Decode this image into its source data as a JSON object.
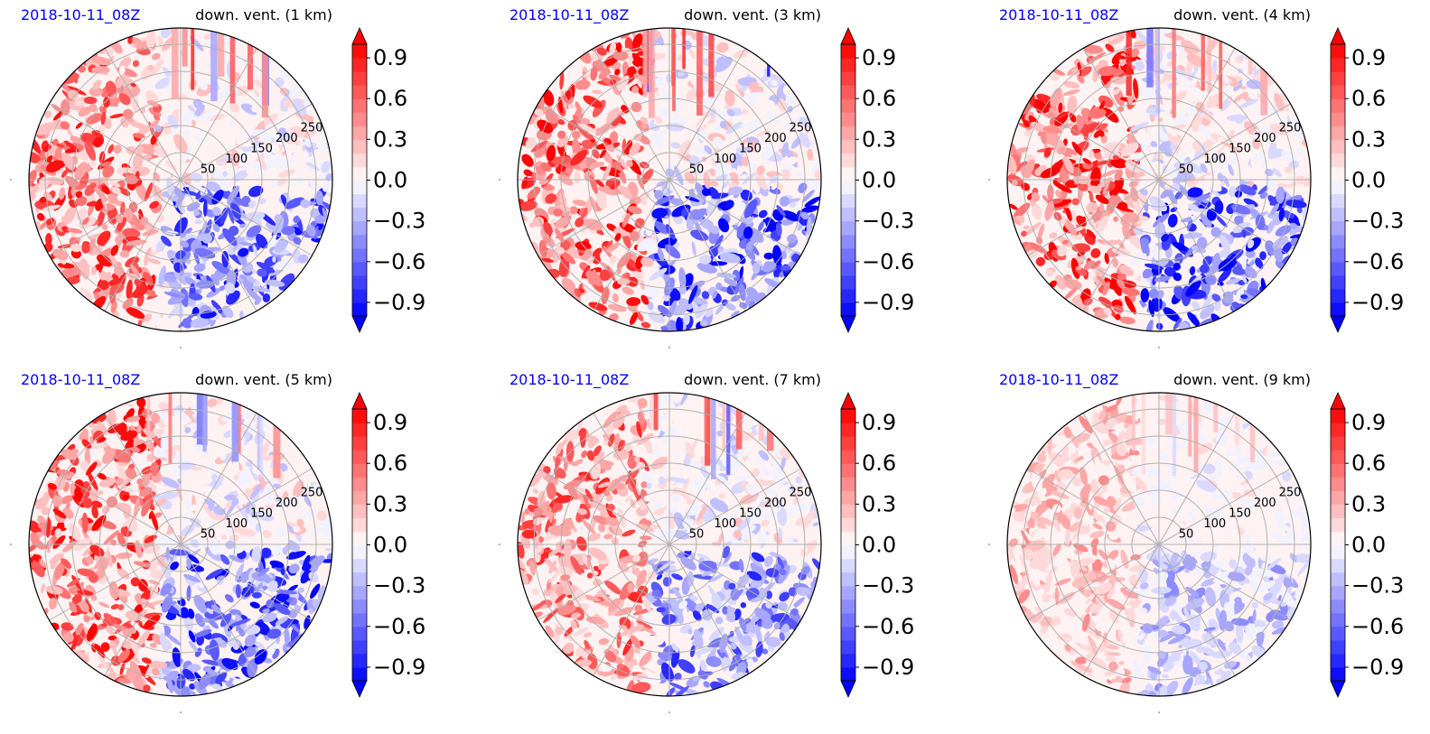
{
  "chart_data": [
    {
      "type": "heatmap",
      "date": "2018-10-11_08Z",
      "title": "down. vent. (1 km)",
      "radial_ticks": [
        "50",
        "100",
        "150",
        "200",
        "250"
      ],
      "colorbar": {
        "ticks": [
          "0.9",
          "0.6",
          "0.3",
          "0.0",
          "−0.3",
          "−0.6",
          "−0.9"
        ],
        "tick_values": [
          0.9,
          0.6,
          0.3,
          0.0,
          -0.3,
          -0.6,
          -0.9
        ],
        "range": [
          -1.0,
          1.0
        ],
        "step": 0.1,
        "extend": "both",
        "cmap": "bwr"
      }
    },
    {
      "type": "heatmap",
      "date": "2018-10-11_08Z",
      "title": "down. vent. (3 km)",
      "radial_ticks": [
        "50",
        "100",
        "150",
        "200",
        "250"
      ],
      "colorbar": {
        "ticks": [
          "0.9",
          "0.6",
          "0.3",
          "0.0",
          "−0.3",
          "−0.6",
          "−0.9"
        ],
        "tick_values": [
          0.9,
          0.6,
          0.3,
          0.0,
          -0.3,
          -0.6,
          -0.9
        ],
        "range": [
          -1.0,
          1.0
        ],
        "step": 0.1,
        "extend": "both",
        "cmap": "bwr"
      }
    },
    {
      "type": "heatmap",
      "date": "2018-10-11_08Z",
      "title": "down. vent. (4 km)",
      "radial_ticks": [
        "50",
        "100",
        "150",
        "200",
        "250"
      ],
      "colorbar": {
        "ticks": [
          "0.9",
          "0.6",
          "0.3",
          "0.0",
          "−0.3",
          "−0.6",
          "−0.9"
        ],
        "tick_values": [
          0.9,
          0.6,
          0.3,
          0.0,
          -0.3,
          -0.6,
          -0.9
        ],
        "range": [
          -1.0,
          1.0
        ],
        "step": 0.1,
        "extend": "both",
        "cmap": "bwr"
      }
    },
    {
      "type": "heatmap",
      "date": "2018-10-11_08Z",
      "title": "down. vent. (5 km)",
      "radial_ticks": [
        "50",
        "100",
        "150",
        "200",
        "250"
      ],
      "colorbar": {
        "ticks": [
          "0.9",
          "0.6",
          "0.3",
          "0.0",
          "−0.3",
          "−0.6",
          "−0.9"
        ],
        "tick_values": [
          0.9,
          0.6,
          0.3,
          0.0,
          -0.3,
          -0.6,
          -0.9
        ],
        "range": [
          -1.0,
          1.0
        ],
        "step": 0.1,
        "extend": "both",
        "cmap": "bwr"
      }
    },
    {
      "type": "heatmap",
      "date": "2018-10-11_08Z",
      "title": "down. vent. (7 km)",
      "radial_ticks": [
        "50",
        "100",
        "150",
        "200",
        "250"
      ],
      "colorbar": {
        "ticks": [
          "0.9",
          "0.6",
          "0.3",
          "0.0",
          "−0.3",
          "−0.6",
          "−0.9"
        ],
        "tick_values": [
          0.9,
          0.6,
          0.3,
          0.0,
          -0.3,
          -0.6,
          -0.9
        ],
        "range": [
          -1.0,
          1.0
        ],
        "step": 0.1,
        "extend": "both",
        "cmap": "bwr"
      }
    },
    {
      "type": "heatmap",
      "date": "2018-10-11_08Z",
      "title": "down. vent. (9 km)",
      "radial_ticks": [
        "50",
        "100",
        "150",
        "200",
        "250"
      ],
      "colorbar": {
        "ticks": [
          "0.9",
          "0.6",
          "0.3",
          "0.0",
          "−0.3",
          "−0.6",
          "−0.9"
        ],
        "tick_values": [
          0.9,
          0.6,
          0.3,
          0.0,
          -0.3,
          -0.6,
          -0.9
        ],
        "range": [
          -1.0,
          1.0
        ],
        "step": 0.1,
        "extend": "both",
        "cmap": "bwr"
      }
    }
  ],
  "colors": {
    "date_text": "#0000ff",
    "title_text": "#000000",
    "positive": "#ff0000",
    "negative": "#0000ff",
    "neutral": "#ffffff",
    "grid": "#b0b0b0",
    "frame": "#000000"
  }
}
